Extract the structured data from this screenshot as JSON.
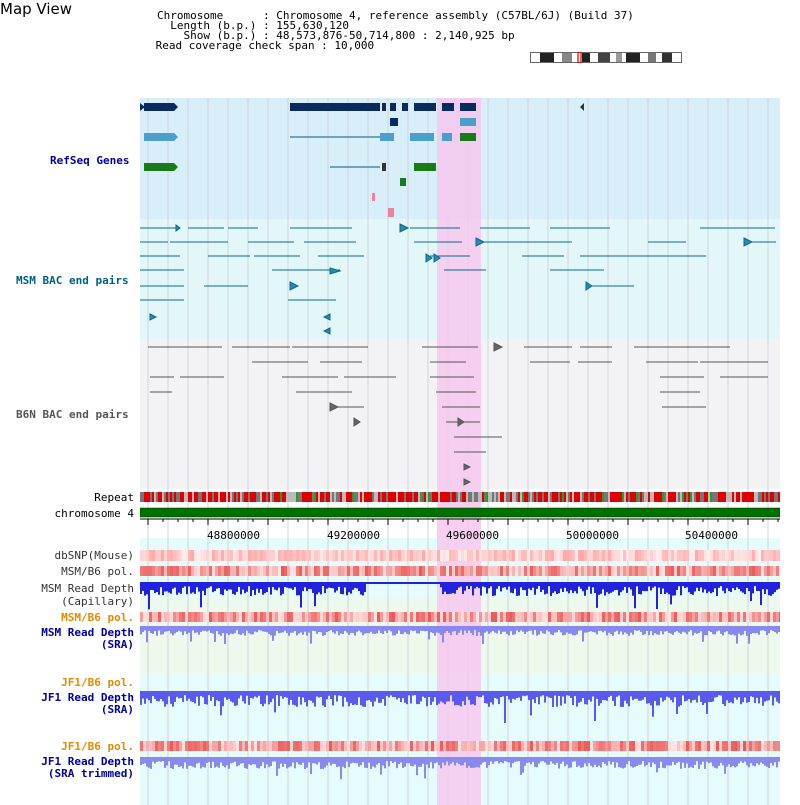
{
  "page": {
    "title": "Map View"
  },
  "info": {
    "chromosome": "Chromosome      : Chromosome 4, reference assembly (C57BL/6J) (Build 37)",
    "length": "  Length (b.p.) : 155,630,120",
    "show": "    Show (b.p.) : 48,573,876-50,714,800 : 2,140,925 bp",
    "coverage": " Read coverage check span : 10,000"
  },
  "tracks": {
    "refseq": "RefSeq Genes",
    "msm_bac": "MSM BAC end pairs",
    "b6n_bac": "B6N BAC end pairs",
    "repeat": "Repeat",
    "chromosome": "chromosome 4",
    "dbsnp": "dbSNP(Mouse)",
    "msm_b6_pol1": "MSM/B6 pol.",
    "msm_depth_cap_1": "MSM Read Depth",
    "msm_depth_cap_2": "(Capillary)",
    "msm_b6_pol2": "MSM/B6 pol.",
    "msm_depth_sra_1": "MSM Read Depth",
    "msm_depth_sra_2": "(SRA)",
    "jf1_b6_pol1": "JF1/B6 pol.",
    "jf1_depth_sra_1": "JF1 Read Depth",
    "jf1_depth_sra_2": "(SRA)",
    "jf1_b6_pol2": "JF1/B6 pol.",
    "jf1_depth_trim_1": "JF1 Read Depth",
    "jf1_depth_trim_2": "(SRA trimmed)"
  },
  "axis": {
    "ticks": [
      "48800000",
      "49200000",
      "49600000",
      "50000000",
      "50400000"
    ]
  },
  "colors": {
    "refseq_bg": "#d8eef9",
    "msm_bg": "#e3f7f9",
    "b6n_bg": "#f3f3f6",
    "highlight": "#f6c8ef",
    "chromosome_bar": "#007000",
    "label_blue": "#0000a0",
    "label_teal": "#006080",
    "label_orange": "#e08c00"
  }
}
